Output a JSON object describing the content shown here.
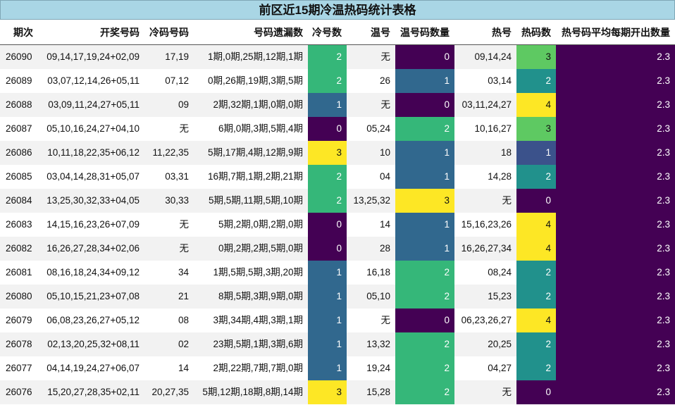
{
  "title": "前区近15期冷温热码统计表格",
  "chart_data": {
    "type": "table",
    "columns": [
      "期次",
      "开奖号码",
      "冷码号码",
      "号码遗漏数",
      "冷号数",
      "温号",
      "温号码数量",
      "热号",
      "热码数",
      "热号码平均每期开出数量"
    ],
    "rows": [
      [
        "26090",
        "09,14,17,19,24+02,09",
        "17,19",
        "1期,0期,25期,12期,1期",
        2,
        "无",
        0,
        "09,14,24",
        3,
        2.3
      ],
      [
        "26089",
        "03,07,12,14,26+05,11",
        "07,12",
        "0期,26期,19期,3期,5期",
        2,
        "26",
        1,
        "03,14",
        2,
        2.3
      ],
      [
        "26088",
        "03,09,11,24,27+05,11",
        "09",
        "2期,32期,1期,0期,0期",
        1,
        "无",
        0,
        "03,11,24,27",
        4,
        2.3
      ],
      [
        "26087",
        "05,10,16,24,27+04,10",
        "无",
        "6期,0期,3期,5期,4期",
        0,
        "05,24",
        2,
        "10,16,27",
        3,
        2.3
      ],
      [
        "26086",
        "10,11,18,22,35+06,12",
        "11,22,35",
        "5期,17期,4期,12期,9期",
        3,
        "10",
        1,
        "18",
        1,
        2.3
      ],
      [
        "26085",
        "03,04,14,28,31+05,07",
        "03,31",
        "16期,7期,1期,2期,21期",
        2,
        "04",
        1,
        "14,28",
        2,
        2.3
      ],
      [
        "26084",
        "13,25,30,32,33+04,05",
        "30,33",
        "5期,5期,11期,5期,10期",
        2,
        "13,25,32",
        3,
        "无",
        0,
        2.3
      ],
      [
        "26083",
        "14,15,16,23,26+07,09",
        "无",
        "5期,2期,0期,2期,0期",
        0,
        "14",
        1,
        "15,16,23,26",
        4,
        2.3
      ],
      [
        "26082",
        "16,26,27,28,34+02,06",
        "无",
        "0期,2期,2期,5期,0期",
        0,
        "28",
        1,
        "16,26,27,34",
        4,
        2.3
      ],
      [
        "26081",
        "08,16,18,24,34+09,12",
        "34",
        "1期,5期,5期,3期,20期",
        1,
        "16,18",
        2,
        "08,24",
        2,
        2.3
      ],
      [
        "26080",
        "05,10,15,21,23+07,08",
        "21",
        "8期,5期,3期,9期,0期",
        1,
        "05,10",
        2,
        "15,23",
        2,
        2.3
      ],
      [
        "26079",
        "06,08,23,26,27+05,12",
        "08",
        "3期,34期,4期,3期,1期",
        1,
        "无",
        0,
        "06,23,26,27",
        4,
        2.3
      ],
      [
        "26078",
        "02,13,20,25,32+08,11",
        "02",
        "23期,5期,1期,3期,6期",
        1,
        "13,32",
        2,
        "20,25",
        2,
        2.3
      ],
      [
        "26077",
        "04,14,19,24,27+06,07",
        "14",
        "2期,22期,7期,7期,0期",
        1,
        "19,24",
        2,
        "04,27",
        2,
        2.3
      ],
      [
        "26076",
        "15,20,27,28,35+02,11",
        "20,27,35",
        "5期,12期,18期,8期,14期",
        3,
        "15,28",
        2,
        "无",
        0,
        2.3
      ]
    ],
    "heatmap_columns": [
      "冷号数",
      "温号码数量",
      "热码数",
      "热号码平均每期开出数量"
    ],
    "colormap": {
      "0": "#440154",
      "1": "#31688e",
      "2": "#35b779",
      "3": "#fde725"
    },
    "hot_colormap": {
      "0": "#440154",
      "1": "#3b528b",
      "2": "#21918c",
      "3": "#5ec962",
      "4": "#fde725"
    },
    "avg_color": "#440154",
    "stripe_color": "#f2f2f2"
  }
}
